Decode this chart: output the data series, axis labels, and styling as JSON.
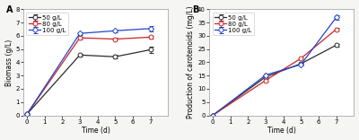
{
  "panel_A": {
    "title": "A",
    "xlabel": "Time (d)",
    "ylabel": "Biomass (g/L)",
    "xlim": [
      -0.2,
      8
    ],
    "ylim": [
      0,
      8
    ],
    "xticks": [
      0,
      1,
      2,
      3,
      4,
      5,
      6,
      7
    ],
    "yticks": [
      0,
      1,
      2,
      3,
      4,
      5,
      6,
      7,
      8
    ],
    "series": [
      {
        "label": "50 g/L",
        "color": "#2b2b2b",
        "x": [
          0,
          3,
          5,
          7
        ],
        "y": [
          0.08,
          4.55,
          4.42,
          4.95
        ],
        "yerr": [
          0,
          0.12,
          0.12,
          0.22
        ],
        "marker": "o",
        "markersize": 3.5
      },
      {
        "label": "80 g/L",
        "color": "#cc2222",
        "x": [
          0,
          3,
          5,
          7
        ],
        "y": [
          0.08,
          5.85,
          5.75,
          5.9
        ],
        "yerr": [
          0,
          0.1,
          0.1,
          0.1
        ],
        "marker": "o",
        "markersize": 3.5
      },
      {
        "label": "100 g/L",
        "color": "#2244cc",
        "x": [
          0,
          3,
          5,
          7
        ],
        "y": [
          0.08,
          6.18,
          6.38,
          6.55
        ],
        "yerr": [
          0,
          0.1,
          0.12,
          0.22
        ],
        "marker": "D",
        "markersize": 3.2
      }
    ]
  },
  "panel_B": {
    "title": "B",
    "xlabel": "Time (d)",
    "ylabel": "Production of carotenoids (mg/L)",
    "xlim": [
      -0.2,
      8
    ],
    "ylim": [
      0,
      40
    ],
    "xticks": [
      0,
      1,
      2,
      3,
      4,
      5,
      6,
      7
    ],
    "yticks": [
      0,
      5,
      10,
      15,
      20,
      25,
      30,
      35,
      40
    ],
    "series": [
      {
        "label": "50 g/L",
        "color": "#2b2b2b",
        "x": [
          0,
          3,
          5,
          7
        ],
        "y": [
          0,
          14.5,
          19.5,
          26.5
        ],
        "yerr": [
          0,
          0.5,
          0.5,
          0.5
        ],
        "marker": "o",
        "markersize": 3.5
      },
      {
        "label": "80 g/L",
        "color": "#cc2222",
        "x": [
          0,
          3,
          5,
          7
        ],
        "y": [
          0,
          13.2,
          21.5,
          32.5
        ],
        "yerr": [
          0,
          0.5,
          0.5,
          0.6
        ],
        "marker": "o",
        "markersize": 3.5
      },
      {
        "label": "100 g/L",
        "color": "#2244cc",
        "x": [
          0,
          3,
          5,
          7
        ],
        "y": [
          0,
          15.2,
          19.2,
          37.0
        ],
        "yerr": [
          0,
          0.5,
          0.5,
          0.8
        ],
        "marker": "D",
        "markersize": 3.2
      }
    ]
  },
  "bg_color": "#f5f5f3",
  "plot_bg": "#ffffff",
  "label_fontsize": 5.5,
  "tick_fontsize": 5,
  "legend_fontsize": 5,
  "linewidth": 0.9,
  "title_fontsize": 7
}
